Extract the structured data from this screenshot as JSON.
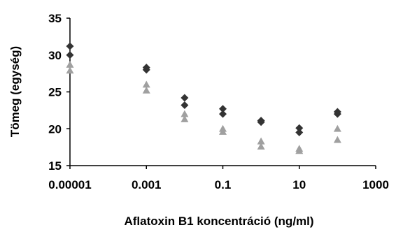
{
  "chart_data": {
    "type": "scatter",
    "title": "",
    "xlabel": "Aflatoxin B1 koncentráció (ng/ml)",
    "ylabel": "Tömeg (egység)",
    "x_scale": "log",
    "xlim": [
      1e-05,
      1000
    ],
    "ylim": [
      15,
      35
    ],
    "x_tick_values": [
      1e-05,
      0.001,
      0.1,
      10,
      1000
    ],
    "x_tick_labels": [
      "0.00001",
      "0.001",
      "0.1",
      "10",
      "1000"
    ],
    "y_ticks": [
      15,
      20,
      25,
      30,
      35
    ],
    "y_tick_labels": [
      "15",
      "20",
      "25",
      "30",
      "35"
    ],
    "grid": false,
    "legend": "none",
    "series": [
      {
        "marker": "diamond",
        "color": "#333333",
        "points": [
          {
            "x": 1e-05,
            "y": 31.2
          },
          {
            "x": 1e-05,
            "y": 30.0
          },
          {
            "x": 0.001,
            "y": 28.3
          },
          {
            "x": 0.001,
            "y": 28.0
          },
          {
            "x": 0.01,
            "y": 24.2
          },
          {
            "x": 0.01,
            "y": 23.2
          },
          {
            "x": 0.1,
            "y": 22.7
          },
          {
            "x": 0.1,
            "y": 22.0
          },
          {
            "x": 1,
            "y": 21.1
          },
          {
            "x": 1,
            "y": 20.9
          },
          {
            "x": 10,
            "y": 20.1
          },
          {
            "x": 10,
            "y": 19.5
          },
          {
            "x": 100,
            "y": 22.3
          },
          {
            "x": 100,
            "y": 22.0
          }
        ]
      },
      {
        "marker": "triangle",
        "color": "#a0a0a0",
        "points": [
          {
            "x": 1e-05,
            "y": 28.7
          },
          {
            "x": 1e-05,
            "y": 27.9
          },
          {
            "x": 0.001,
            "y": 26.0
          },
          {
            "x": 0.001,
            "y": 25.2
          },
          {
            "x": 0.01,
            "y": 22.0
          },
          {
            "x": 0.01,
            "y": 21.3
          },
          {
            "x": 0.1,
            "y": 20.0
          },
          {
            "x": 0.1,
            "y": 19.6
          },
          {
            "x": 1,
            "y": 18.3
          },
          {
            "x": 1,
            "y": 17.6
          },
          {
            "x": 10,
            "y": 17.3
          },
          {
            "x": 10,
            "y": 17.0
          },
          {
            "x": 100,
            "y": 20.0
          },
          {
            "x": 100,
            "y": 18.5
          }
        ]
      }
    ]
  }
}
